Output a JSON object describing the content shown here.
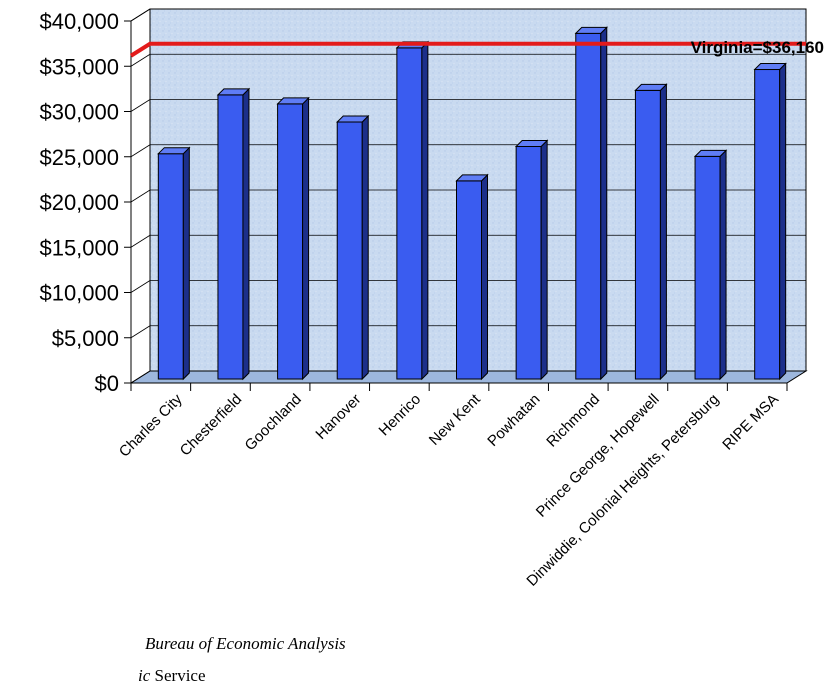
{
  "chart_data": {
    "type": "bar",
    "categories": [
      "Charles City",
      "Chesterfield",
      "Goochland",
      "Hanover",
      "Henrico",
      "New Kent",
      "Powhatan",
      "Richmond",
      "Prince George, Hopewell",
      "Dinwiddie, Colonial Heights, Petersburg",
      "RIPE MSA"
    ],
    "values": [
      26000,
      32500,
      31500,
      29500,
      37700,
      23000,
      26800,
      39300,
      33000,
      25700,
      35300
    ],
    "ylim": [
      0,
      40000
    ],
    "yticks": [
      "$0",
      "$5,000",
      "$10,000",
      "$15,000",
      "$20,000",
      "$25,000",
      "$30,000",
      "$35,000",
      "$40,000"
    ],
    "grid": true,
    "reference_line": {
      "label": "Virginia=$36,160",
      "value": 36160,
      "color": "#e31b1b"
    },
    "bar_color": "#3a5cf0",
    "plot_background": "#c9daf0"
  },
  "footer": {
    "source_line1": "Bureau of Economic Analysis",
    "source_line2_italic": "ic",
    "source_line2_rest": " Service"
  }
}
